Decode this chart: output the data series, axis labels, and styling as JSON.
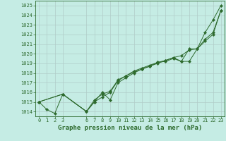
{
  "title": "Graphe pression niveau de la mer (hPa)",
  "xlabel": "Graphe pression niveau de la mer (hPa)",
  "ylim": [
    1013.5,
    1025.5
  ],
  "xlim": [
    -0.5,
    23.5
  ],
  "yticks": [
    1014,
    1015,
    1016,
    1017,
    1018,
    1019,
    1020,
    1021,
    1022,
    1023,
    1024,
    1025
  ],
  "xticks": [
    0,
    1,
    2,
    3,
    6,
    7,
    8,
    9,
    10,
    11,
    12,
    13,
    14,
    15,
    16,
    17,
    18,
    19,
    20,
    21,
    22,
    23
  ],
  "background_color": "#c5ece4",
  "grid_color": "#b0ccc8",
  "line_color": "#2d6a2d",
  "series1": {
    "x": [
      0,
      1,
      2,
      3,
      6,
      7,
      8,
      9,
      10,
      11,
      12,
      13,
      14,
      15,
      16,
      17,
      18,
      19,
      20,
      21,
      22,
      23
    ],
    "y": [
      1015.0,
      1014.2,
      1013.8,
      1015.8,
      1014.0,
      1015.0,
      1015.5,
      1016.0,
      1017.2,
      1017.7,
      1018.2,
      1018.5,
      1018.8,
      1019.1,
      1019.2,
      1019.5,
      1019.2,
      1019.2,
      1020.5,
      1021.5,
      1022.2,
      1024.5
    ]
  },
  "series2": {
    "x": [
      0,
      3,
      6,
      7,
      8,
      9,
      10,
      11,
      12,
      13,
      14,
      15,
      16,
      17,
      18,
      19,
      20,
      21,
      22,
      23
    ],
    "y": [
      1015.0,
      1015.8,
      1014.0,
      1015.2,
      1015.8,
      1016.1,
      1017.3,
      1017.7,
      1018.1,
      1018.4,
      1018.7,
      1019.0,
      1019.3,
      1019.6,
      1019.8,
      1020.4,
      1020.5,
      1021.3,
      1022.0,
      1024.5
    ]
  },
  "series3": {
    "x": [
      0,
      3,
      6,
      7,
      8,
      9,
      10,
      11,
      12,
      13,
      14,
      15,
      16,
      17,
      18,
      19,
      20,
      21,
      22,
      23
    ],
    "y": [
      1015.0,
      1015.8,
      1014.0,
      1015.0,
      1016.0,
      1015.2,
      1017.0,
      1017.5,
      1018.0,
      1018.4,
      1018.7,
      1019.1,
      1019.3,
      1019.6,
      1019.2,
      1020.5,
      1020.5,
      1022.2,
      1023.5,
      1025.0
    ]
  }
}
